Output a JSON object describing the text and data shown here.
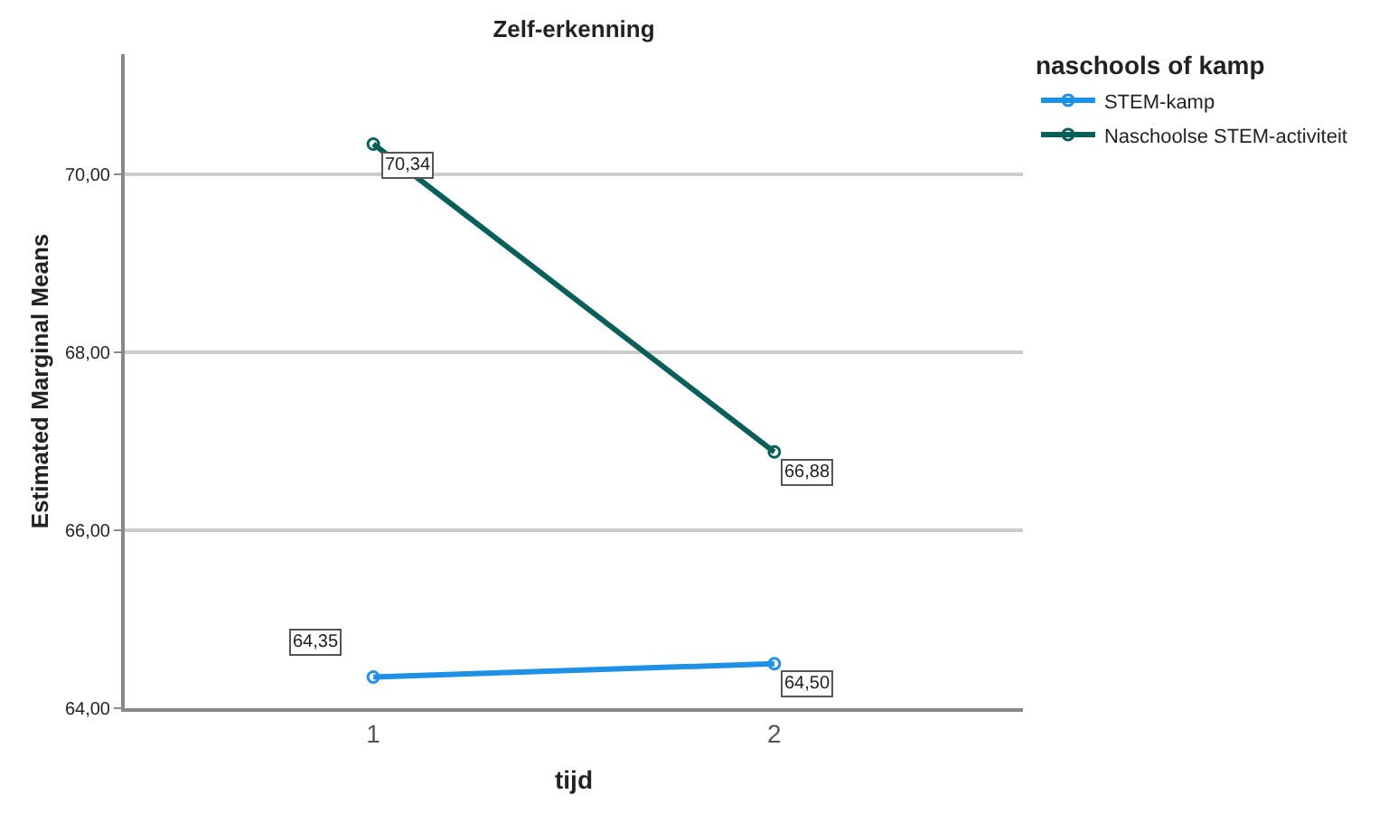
{
  "chart_data": {
    "type": "line",
    "title": "Zelf-erkenning",
    "xlabel": "tijd",
    "ylabel": "Estimated Marginal Means",
    "legend_title": "naschools of kamp",
    "categories": [
      "1",
      "2"
    ],
    "series": [
      {
        "name": "STEM-kamp",
        "color": "#1e90e6",
        "values": [
          64.35,
          64.5
        ],
        "value_labels": [
          "64,35",
          "64,50"
        ]
      },
      {
        "name": "Naschoolse STEM-activiteit",
        "color": "#0a5f5a",
        "values": [
          70.34,
          66.88
        ],
        "value_labels": [
          "70,34",
          "66,88"
        ]
      }
    ],
    "ylim": [
      64,
      71.35
    ],
    "yticks": [
      {
        "value": 64,
        "label": "64,00"
      },
      {
        "value": 66,
        "label": "66,00"
      },
      {
        "value": 68,
        "label": "68,00"
      },
      {
        "value": 70,
        "label": "70,00"
      }
    ],
    "grid": "y",
    "legend": "top right",
    "marker": "circle",
    "line_style": "solid"
  }
}
